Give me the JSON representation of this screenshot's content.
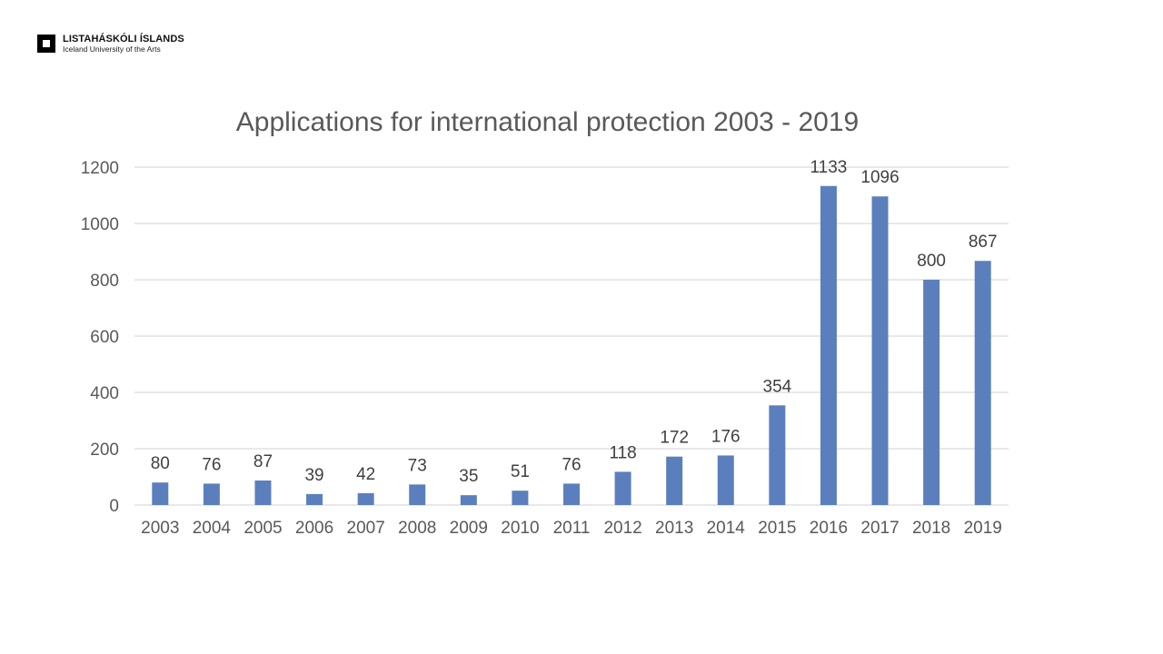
{
  "logo": {
    "name": "LISTAHÁSKÓLI ÍSLANDS",
    "subtitle": "Iceland University of the Arts"
  },
  "chart_data": {
    "type": "bar",
    "title": "Applications for international protection 2003 - 2019",
    "xlabel": "",
    "ylabel": "",
    "categories": [
      "2003",
      "2004",
      "2005",
      "2006",
      "2007",
      "2008",
      "2009",
      "2010",
      "2011",
      "2012",
      "2013",
      "2014",
      "2015",
      "2016",
      "2017",
      "2018",
      "2019"
    ],
    "values": [
      80,
      76,
      87,
      39,
      42,
      73,
      35,
      51,
      76,
      118,
      172,
      176,
      354,
      1133,
      1096,
      800,
      867
    ],
    "ylim": [
      0,
      1200
    ],
    "yticks": [
      0,
      200,
      400,
      600,
      800,
      1000,
      1200
    ],
    "grid": true,
    "legend": "none",
    "bar_color": "#5b7fbd",
    "data_labels": true
  }
}
